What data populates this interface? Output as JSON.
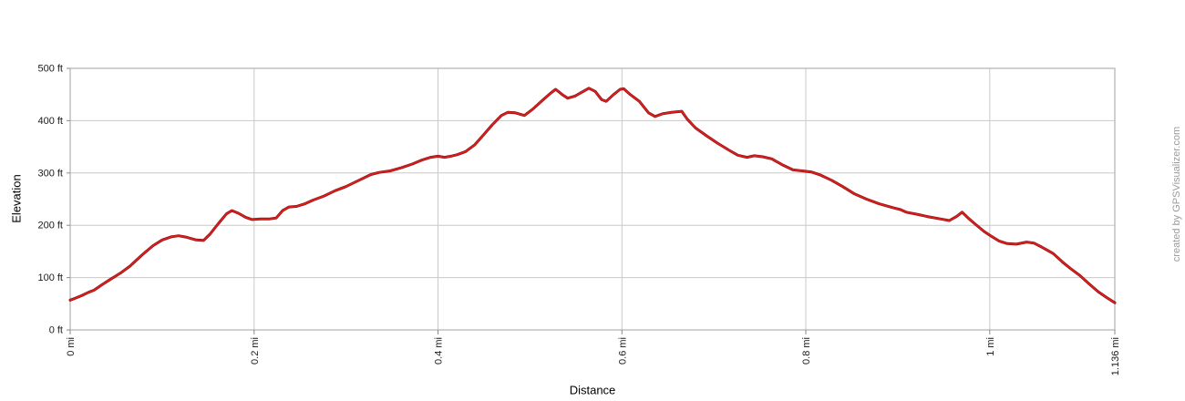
{
  "credit": "created by GPSVisualizer.com",
  "colors": {
    "background": "#ffffff",
    "frame": "#b0b0b0",
    "grid": "#c9c9c9",
    "tick": "#8a8a8a",
    "tick_text": "#1a1a1a",
    "axis_title_text": "#000000",
    "credit_text": "#9b9b9b",
    "line": "#dd1f1f",
    "line_dark": "#8c0f0f"
  },
  "chart_data": {
    "type": "line",
    "xlabel": "Distance",
    "ylabel": "Elevation",
    "x_units": "mi",
    "y_units": "ft",
    "xlim": [
      0,
      1.136
    ],
    "ylim": [
      0,
      500
    ],
    "grid": true,
    "legend": "none",
    "x_ticks": [
      {
        "v": 0,
        "label": "0 mi"
      },
      {
        "v": 0.2,
        "label": "0.2 mi"
      },
      {
        "v": 0.4,
        "label": "0.4 mi"
      },
      {
        "v": 0.6,
        "label": "0.6 mi"
      },
      {
        "v": 0.8,
        "label": "0.8 mi"
      },
      {
        "v": 1,
        "label": "1 mi"
      },
      {
        "v": 1.136,
        "label": "1.136 mi"
      }
    ],
    "y_ticks": [
      {
        "v": 0,
        "label": "0 ft"
      },
      {
        "v": 100,
        "label": "100 ft"
      },
      {
        "v": 200,
        "label": "200 ft"
      },
      {
        "v": 300,
        "label": "300 ft"
      },
      {
        "v": 400,
        "label": "400 ft"
      },
      {
        "v": 500,
        "label": "500 ft"
      }
    ],
    "series": [
      {
        "name": "elevation-profile",
        "points": [
          [
            0.0,
            57
          ],
          [
            0.006,
            61
          ],
          [
            0.013,
            66
          ],
          [
            0.02,
            72
          ],
          [
            0.026,
            76
          ],
          [
            0.035,
            87
          ],
          [
            0.045,
            98
          ],
          [
            0.055,
            109
          ],
          [
            0.065,
            122
          ],
          [
            0.078,
            143
          ],
          [
            0.09,
            161
          ],
          [
            0.1,
            172
          ],
          [
            0.11,
            178
          ],
          [
            0.118,
            180
          ],
          [
            0.127,
            177
          ],
          [
            0.137,
            172
          ],
          [
            0.145,
            171
          ],
          [
            0.152,
            183
          ],
          [
            0.161,
            203
          ],
          [
            0.17,
            222
          ],
          [
            0.176,
            228
          ],
          [
            0.183,
            223
          ],
          [
            0.191,
            215
          ],
          [
            0.198,
            211
          ],
          [
            0.207,
            212
          ],
          [
            0.216,
            212
          ],
          [
            0.224,
            214
          ],
          [
            0.231,
            228
          ],
          [
            0.238,
            235
          ],
          [
            0.246,
            236
          ],
          [
            0.255,
            241
          ],
          [
            0.264,
            248
          ],
          [
            0.276,
            256
          ],
          [
            0.288,
            266
          ],
          [
            0.3,
            274
          ],
          [
            0.314,
            286
          ],
          [
            0.327,
            297
          ],
          [
            0.336,
            301
          ],
          [
            0.348,
            304
          ],
          [
            0.36,
            310
          ],
          [
            0.372,
            317
          ],
          [
            0.383,
            325
          ],
          [
            0.392,
            330
          ],
          [
            0.4,
            332
          ],
          [
            0.407,
            330
          ],
          [
            0.414,
            332
          ],
          [
            0.421,
            335
          ],
          [
            0.43,
            341
          ],
          [
            0.44,
            354
          ],
          [
            0.449,
            372
          ],
          [
            0.459,
            392
          ],
          [
            0.469,
            410
          ],
          [
            0.476,
            416
          ],
          [
            0.484,
            415
          ],
          [
            0.494,
            410
          ],
          [
            0.503,
            422
          ],
          [
            0.513,
            438
          ],
          [
            0.522,
            452
          ],
          [
            0.528,
            460
          ],
          [
            0.535,
            450
          ],
          [
            0.541,
            443
          ],
          [
            0.549,
            447
          ],
          [
            0.557,
            455
          ],
          [
            0.564,
            462
          ],
          [
            0.571,
            456
          ],
          [
            0.578,
            440
          ],
          [
            0.583,
            437
          ],
          [
            0.591,
            450
          ],
          [
            0.598,
            460
          ],
          [
            0.602,
            461
          ],
          [
            0.609,
            450
          ],
          [
            0.619,
            437
          ],
          [
            0.629,
            415
          ],
          [
            0.636,
            408
          ],
          [
            0.644,
            413
          ],
          [
            0.654,
            416
          ],
          [
            0.665,
            418
          ],
          [
            0.671,
            403
          ],
          [
            0.68,
            386
          ],
          [
            0.692,
            371
          ],
          [
            0.704,
            357
          ],
          [
            0.716,
            344
          ],
          [
            0.726,
            334
          ],
          [
            0.736,
            330
          ],
          [
            0.744,
            333
          ],
          [
            0.753,
            331
          ],
          [
            0.763,
            327
          ],
          [
            0.774,
            316
          ],
          [
            0.786,
            306
          ],
          [
            0.796,
            304
          ],
          [
            0.806,
            302
          ],
          [
            0.816,
            296
          ],
          [
            0.828,
            286
          ],
          [
            0.84,
            274
          ],
          [
            0.853,
            260
          ],
          [
            0.866,
            250
          ],
          [
            0.88,
            241
          ],
          [
            0.894,
            234
          ],
          [
            0.903,
            230
          ],
          [
            0.909,
            225
          ],
          [
            0.921,
            221
          ],
          [
            0.934,
            216
          ],
          [
            0.947,
            212
          ],
          [
            0.956,
            209
          ],
          [
            0.964,
            217
          ],
          [
            0.97,
            225
          ],
          [
            0.977,
            213
          ],
          [
            0.985,
            201
          ],
          [
            0.994,
            188
          ],
          [
            1.001,
            180
          ],
          [
            1.01,
            170
          ],
          [
            1.019,
            165
          ],
          [
            1.029,
            164
          ],
          [
            1.04,
            168
          ],
          [
            1.048,
            166
          ],
          [
            1.058,
            157
          ],
          [
            1.069,
            146
          ],
          [
            1.079,
            130
          ],
          [
            1.088,
            117
          ],
          [
            1.098,
            104
          ],
          [
            1.108,
            88
          ],
          [
            1.118,
            73
          ],
          [
            1.127,
            62
          ],
          [
            1.136,
            52
          ]
        ]
      }
    ]
  }
}
